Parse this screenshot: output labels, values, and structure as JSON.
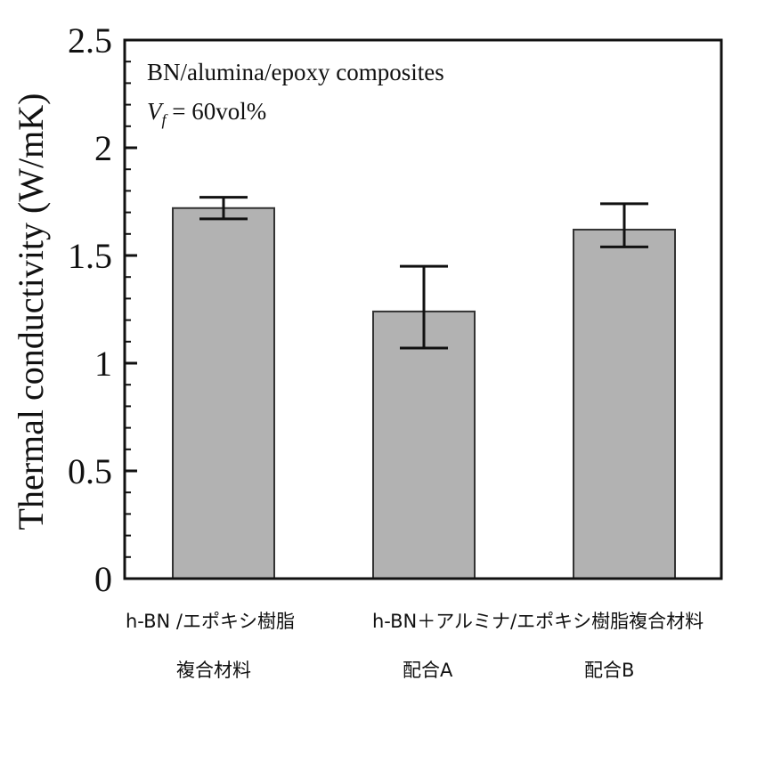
{
  "chart_data": {
    "type": "bar",
    "ylabel": "Thermal conductivity (W/mK)",
    "xlabel": "",
    "ylim": [
      0,
      2.5
    ],
    "yticks": [
      "0",
      "0.5",
      "1",
      "1.5",
      "2",
      "2.5"
    ],
    "grid": false,
    "categories": [
      "h-BN /エポキシ樹脂複合材料",
      "配合A",
      "配合B"
    ],
    "values": [
      1.72,
      1.24,
      1.62
    ],
    "error_low": [
      1.67,
      1.07,
      1.54
    ],
    "error_high": [
      1.77,
      1.45,
      1.74
    ],
    "bar_color": "#b2b2b2",
    "annotations": {
      "line1": "BN/alumina/epoxy composites",
      "vf_symbol": "V",
      "vf_sub": "f",
      "vf_rest": " = 60vol%"
    }
  },
  "labels": {
    "bar1_line1": "h-BN /エポキシ樹脂",
    "bar1_line2": "複合材料",
    "group_line1": "h-BN＋アルミナ/エポキシ樹脂複合材料",
    "bar2_line2": "配合A",
    "bar3_line2": "配合B"
  }
}
